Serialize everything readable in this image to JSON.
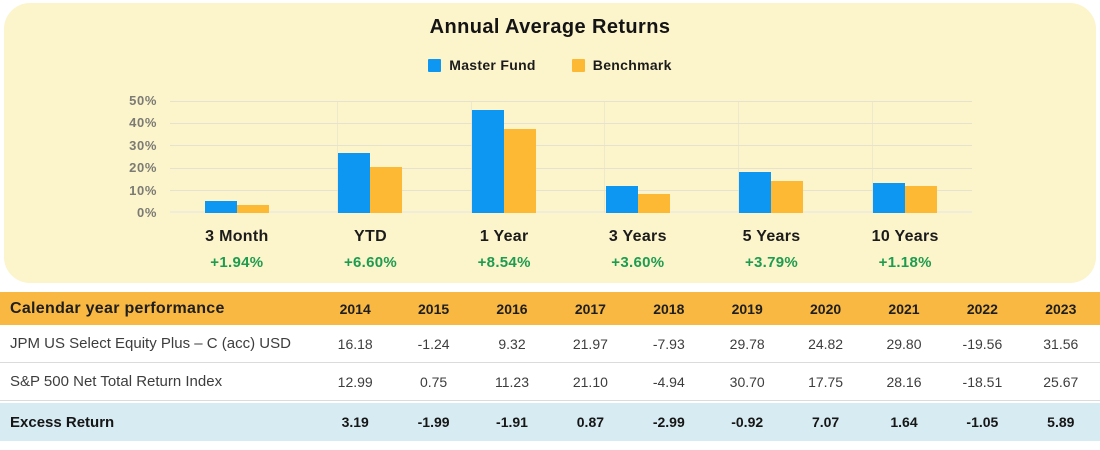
{
  "chart_data": [
    {
      "type": "bar",
      "title": "Annual Average Returns",
      "categories": [
        "3 Month",
        "YTD",
        "1 Year",
        "3 Years",
        "5 Years",
        "10 Years"
      ],
      "series": [
        {
          "name": "Master Fund",
          "color": "#0D97F2",
          "values": [
            5.3,
            27.0,
            45.9,
            12.1,
            18.1,
            13.4
          ]
        },
        {
          "name": "Benchmark",
          "color": "#FDB933",
          "values": [
            3.4,
            20.4,
            37.4,
            8.5,
            14.3,
            12.2
          ]
        }
      ],
      "category_sublabels": [
        "+1.94%",
        "+6.60%",
        "+8.54%",
        "+3.60%",
        "+3.79%",
        "+1.18%"
      ],
      "sublabel_color": "#1D9C4F",
      "ylim": [
        0,
        50
      ],
      "yticks": [
        0,
        10,
        20,
        30,
        40,
        50
      ],
      "ytick_suffix": "%",
      "grid": "horizontal",
      "legend_position": "top"
    },
    {
      "type": "table",
      "header": {
        "label": "Calendar year performance",
        "columns": [
          "2014",
          "2015",
          "2016",
          "2017",
          "2018",
          "2019",
          "2020",
          "2021",
          "2022",
          "2023"
        ]
      },
      "rows": [
        {
          "label": "JPM US Select Equity Plus – C (acc) USD",
          "values": [
            "16.18",
            "-1.24",
            "9.32",
            "21.97",
            "-7.93",
            "29.78",
            "24.82",
            "29.80",
            "-19.56",
            "31.56"
          ],
          "emphasis": false
        },
        {
          "label": "S&P 500 Net Total Return Index",
          "values": [
            "12.99",
            "0.75",
            "11.23",
            "21.10",
            "-4.94",
            "30.70",
            "17.75",
            "28.16",
            "-18.51",
            "25.67"
          ],
          "emphasis": false
        },
        {
          "label": "Excess Return",
          "values": [
            "3.19",
            "-1.99",
            "-1.91",
            "0.87",
            "-2.99",
            "-0.92",
            "7.07",
            "1.64",
            "-1.05",
            "5.89"
          ],
          "emphasis": true
        }
      ]
    }
  ],
  "colors": {
    "panel_bg": "#FCF4CB",
    "bar_blue": "#0D97F2",
    "bar_orange": "#FDB933",
    "table_header_bg": "#F8B841",
    "excess_row_bg": "#D7EBF2",
    "excess_value_green": "#1D9C4F",
    "gridline": "#E7E2CE"
  }
}
